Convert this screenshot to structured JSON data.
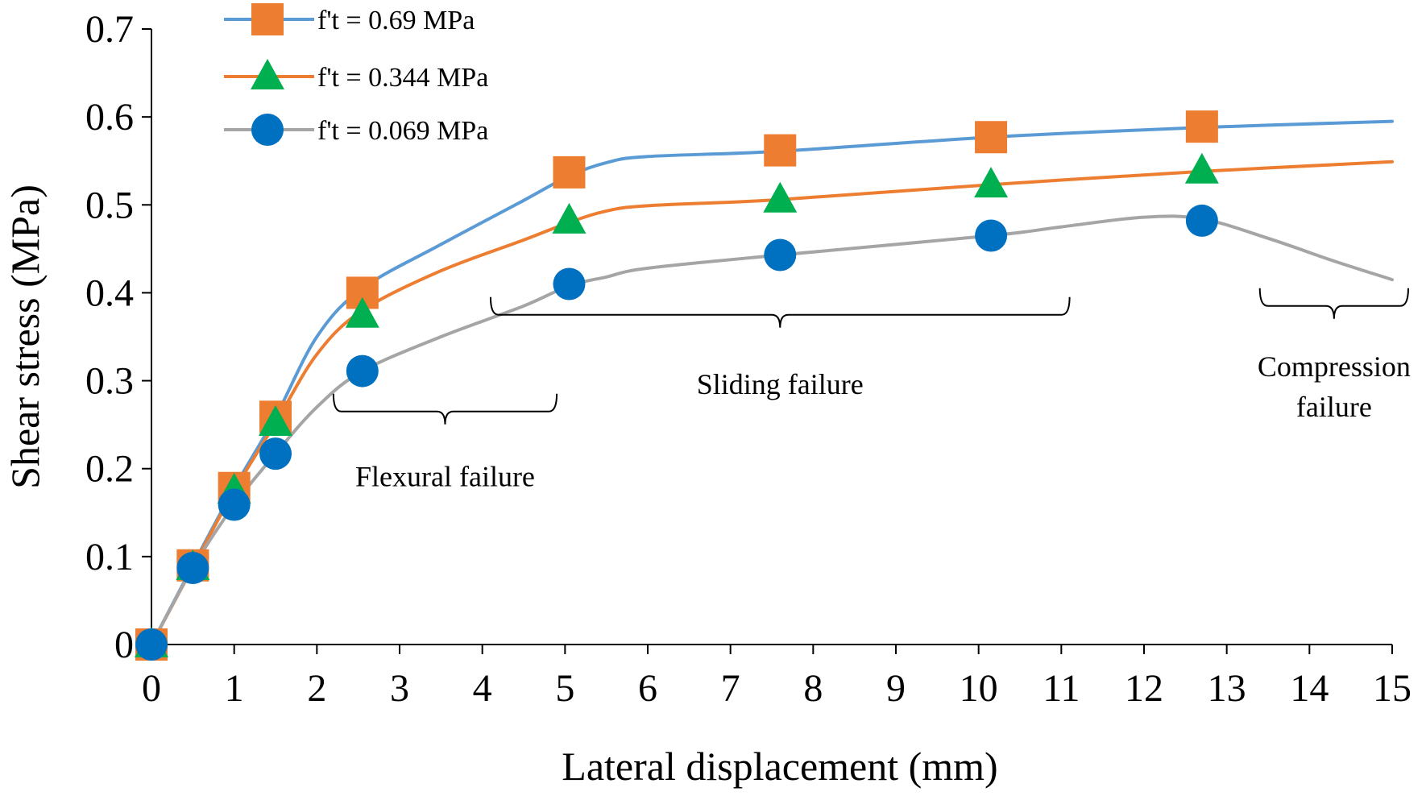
{
  "chart_data": {
    "type": "line",
    "title": "",
    "xlabel": "Lateral displacement (mm)",
    "ylabel": "Shear stress (MPa)",
    "xlim": [
      0,
      15
    ],
    "ylim": [
      0,
      0.7
    ],
    "xticks": [
      "0",
      "1",
      "2",
      "3",
      "4",
      "5",
      "6",
      "7",
      "8",
      "9",
      "10",
      "11",
      "12",
      "13",
      "14",
      "15"
    ],
    "yticks": [
      "0",
      "0.1",
      "0.2",
      "0.3",
      "0.4",
      "0.5",
      "0.6",
      "0.7"
    ],
    "grid": false,
    "legend_position": "top-left",
    "series": [
      {
        "name": "f't = 0.69 MPa",
        "color": "#5B9BD5",
        "marker": "square",
        "marker_color": "#ED7D31",
        "markers": [
          {
            "x": 0,
            "y": 0
          },
          {
            "x": 0.5,
            "y": 0.09
          },
          {
            "x": 1.0,
            "y": 0.178
          },
          {
            "x": 1.5,
            "y": 0.259
          },
          {
            "x": 2.55,
            "y": 0.4
          },
          {
            "x": 5.05,
            "y": 0.537
          },
          {
            "x": 7.6,
            "y": 0.562
          },
          {
            "x": 10.15,
            "y": 0.577
          },
          {
            "x": 12.7,
            "y": 0.589
          }
        ],
        "curve": [
          {
            "x": 0,
            "y": 0
          },
          {
            "x": 0.5,
            "y": 0.09
          },
          {
            "x": 1.0,
            "y": 0.178
          },
          {
            "x": 1.5,
            "y": 0.259
          },
          {
            "x": 2.0,
            "y": 0.35
          },
          {
            "x": 2.55,
            "y": 0.405
          },
          {
            "x": 3.5,
            "y": 0.455
          },
          {
            "x": 4.5,
            "y": 0.505
          },
          {
            "x": 5.05,
            "y": 0.533
          },
          {
            "x": 5.5,
            "y": 0.548
          },
          {
            "x": 6.0,
            "y": 0.555
          },
          {
            "x": 7.6,
            "y": 0.561
          },
          {
            "x": 10.15,
            "y": 0.577
          },
          {
            "x": 12.7,
            "y": 0.588
          },
          {
            "x": 15.0,
            "y": 0.595
          }
        ]
      },
      {
        "name": "f't = 0.344 MPa",
        "color": "#ED7D31",
        "marker": "triangle",
        "marker_color": "#00B050",
        "markers": [
          {
            "x": 0,
            "y": 0
          },
          {
            "x": 0.5,
            "y": 0.088
          },
          {
            "x": 1.0,
            "y": 0.175
          },
          {
            "x": 1.5,
            "y": 0.252
          },
          {
            "x": 2.55,
            "y": 0.375
          },
          {
            "x": 5.05,
            "y": 0.482
          },
          {
            "x": 7.6,
            "y": 0.506
          },
          {
            "x": 10.15,
            "y": 0.523
          },
          {
            "x": 12.7,
            "y": 0.539
          }
        ],
        "curve": [
          {
            "x": 0,
            "y": 0
          },
          {
            "x": 0.5,
            "y": 0.088
          },
          {
            "x": 1.0,
            "y": 0.175
          },
          {
            "x": 1.5,
            "y": 0.252
          },
          {
            "x": 2.0,
            "y": 0.33
          },
          {
            "x": 2.55,
            "y": 0.38
          },
          {
            "x": 3.5,
            "y": 0.425
          },
          {
            "x": 4.5,
            "y": 0.46
          },
          {
            "x": 5.05,
            "y": 0.48
          },
          {
            "x": 5.5,
            "y": 0.493
          },
          {
            "x": 6.0,
            "y": 0.499
          },
          {
            "x": 7.6,
            "y": 0.506
          },
          {
            "x": 10.15,
            "y": 0.523
          },
          {
            "x": 12.7,
            "y": 0.538
          },
          {
            "x": 15.0,
            "y": 0.549
          }
        ]
      },
      {
        "name": "f't = 0.069 MPa",
        "color": "#A5A5A5",
        "marker": "circle",
        "marker_color": "#0070C0",
        "markers": [
          {
            "x": 0,
            "y": 0
          },
          {
            "x": 0.5,
            "y": 0.087
          },
          {
            "x": 1.0,
            "y": 0.159
          },
          {
            "x": 1.5,
            "y": 0.217
          },
          {
            "x": 2.55,
            "y": 0.311
          },
          {
            "x": 5.05,
            "y": 0.41
          },
          {
            "x": 7.6,
            "y": 0.443
          },
          {
            "x": 10.15,
            "y": 0.465
          },
          {
            "x": 12.7,
            "y": 0.482
          }
        ],
        "curve": [
          {
            "x": 0,
            "y": 0
          },
          {
            "x": 0.5,
            "y": 0.087
          },
          {
            "x": 1.0,
            "y": 0.159
          },
          {
            "x": 1.5,
            "y": 0.217
          },
          {
            "x": 2.0,
            "y": 0.27
          },
          {
            "x": 2.55,
            "y": 0.311
          },
          {
            "x": 3.5,
            "y": 0.35
          },
          {
            "x": 4.5,
            "y": 0.385
          },
          {
            "x": 5.05,
            "y": 0.408
          },
          {
            "x": 5.5,
            "y": 0.418
          },
          {
            "x": 6.0,
            "y": 0.428
          },
          {
            "x": 7.6,
            "y": 0.443
          },
          {
            "x": 10.15,
            "y": 0.465
          },
          {
            "x": 11.0,
            "y": 0.475
          },
          {
            "x": 12.0,
            "y": 0.486
          },
          {
            "x": 12.7,
            "y": 0.484
          },
          {
            "x": 13.5,
            "y": 0.462
          },
          {
            "x": 14.3,
            "y": 0.436
          },
          {
            "x": 15.0,
            "y": 0.415
          }
        ]
      }
    ],
    "annotations": [
      {
        "name": "flexural",
        "label": "Flexural failure",
        "x_from": 2.2,
        "x_to": 4.9,
        "y_bracket": 0.265,
        "y_label": 0.18
      },
      {
        "name": "sliding",
        "label": "Sliding failure",
        "x_from": 4.1,
        "x_to": 11.1,
        "y_bracket": 0.375,
        "y_label": 0.285
      },
      {
        "name": "compression",
        "label": "Compression\nfailure",
        "x_from": 13.4,
        "x_to": 15.2,
        "y_bracket": 0.385,
        "y_label": 0.305
      }
    ]
  }
}
